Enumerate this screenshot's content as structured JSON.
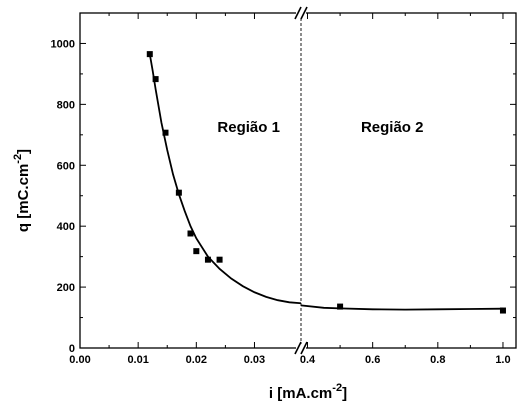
{
  "chart_data": {
    "type": "scatter",
    "xlabel": "i [mA.cm",
    "xlabel_sup": "-2",
    "xlabel_close": "]",
    "ylabel": "q [mC.cm",
    "ylabel_sup": "-2",
    "ylabel_close": "]",
    "x_axis_segments": [
      {
        "range": [
          0.0,
          0.038
        ],
        "ticks": [
          0.0,
          0.01,
          0.02,
          0.03
        ],
        "tick_labels": [
          "0.00",
          "0.01",
          "0.02",
          "0.03"
        ]
      },
      {
        "range": [
          0.38,
          1.04
        ],
        "ticks": [
          0.4,
          0.6,
          0.8,
          1.0
        ],
        "tick_labels": [
          "0.4",
          "0.6",
          "0.8",
          "1.0"
        ]
      }
    ],
    "x_axis_break_marker": "//",
    "ylim": [
      0,
      1100
    ],
    "y_ticks": [
      0,
      200,
      400,
      600,
      800,
      1000
    ],
    "y_tick_labels": [
      "0",
      "200",
      "400",
      "600",
      "800",
      "1000"
    ],
    "series": [
      {
        "kind": "points",
        "marker": "square",
        "points": [
          {
            "x": 0.012,
            "y": 965
          },
          {
            "x": 0.013,
            "y": 883
          },
          {
            "x": 0.0147,
            "y": 707
          },
          {
            "x": 0.017,
            "y": 510
          },
          {
            "x": 0.019,
            "y": 376
          },
          {
            "x": 0.02,
            "y": 318
          },
          {
            "x": 0.022,
            "y": 290
          },
          {
            "x": 0.024,
            "y": 290
          },
          {
            "x": 0.5,
            "y": 136
          },
          {
            "x": 1.0,
            "y": 123
          }
        ]
      },
      {
        "kind": "fit-line",
        "segment1": [
          {
            "x": 0.012,
            "y": 965
          },
          {
            "x": 0.0125,
            "y": 910
          },
          {
            "x": 0.013,
            "y": 850
          },
          {
            "x": 0.014,
            "y": 740
          },
          {
            "x": 0.015,
            "y": 650
          },
          {
            "x": 0.016,
            "y": 570
          },
          {
            "x": 0.017,
            "y": 505
          },
          {
            "x": 0.018,
            "y": 450
          },
          {
            "x": 0.019,
            "y": 400
          },
          {
            "x": 0.02,
            "y": 360
          },
          {
            "x": 0.022,
            "y": 300
          },
          {
            "x": 0.024,
            "y": 260
          },
          {
            "x": 0.026,
            "y": 228
          },
          {
            "x": 0.028,
            "y": 203
          },
          {
            "x": 0.03,
            "y": 183
          },
          {
            "x": 0.032,
            "y": 168
          },
          {
            "x": 0.034,
            "y": 157
          },
          {
            "x": 0.036,
            "y": 150
          },
          {
            "x": 0.038,
            "y": 147
          }
        ],
        "segment2": [
          {
            "x": 0.38,
            "y": 140
          },
          {
            "x": 0.45,
            "y": 132
          },
          {
            "x": 0.5,
            "y": 130
          },
          {
            "x": 0.6,
            "y": 127
          },
          {
            "x": 0.7,
            "y": 126
          },
          {
            "x": 0.8,
            "y": 127
          },
          {
            "x": 0.9,
            "y": 128
          },
          {
            "x": 1.0,
            "y": 129
          }
        ]
      }
    ],
    "annotations": [
      {
        "text": "Região 1",
        "x": 0.029,
        "y": 725,
        "segment": 0
      },
      {
        "text": "Região 2",
        "x": 0.66,
        "y": 725,
        "segment": 1
      }
    ],
    "divider": {
      "style": "dashed",
      "x": 0.038,
      "segment": 0
    }
  }
}
